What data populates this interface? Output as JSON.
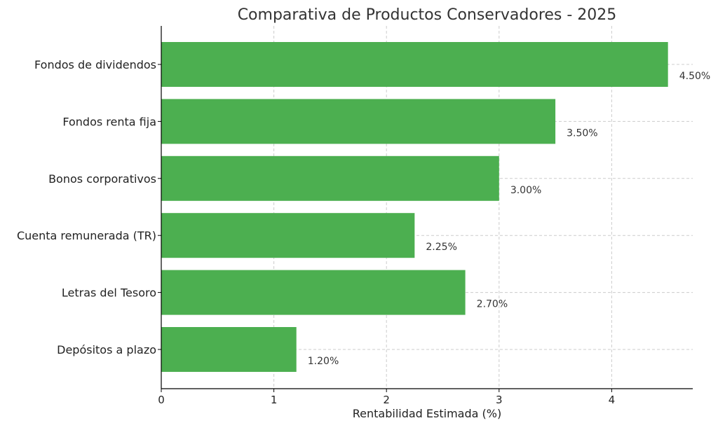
{
  "chart_data": {
    "type": "bar",
    "orientation": "horizontal",
    "title": "Comparativa de Productos Conservadores - 2025",
    "xlabel": "Rentabilidad Estimada (%)",
    "ylabel": "",
    "categories": [
      "Fondos de dividendos",
      "Fondos renta fija",
      "Bonos corporativos",
      "Cuenta remunerada (TR)",
      "Letras del Tesoro",
      "Depósitos a plazo"
    ],
    "values": [
      4.5,
      3.5,
      3.0,
      2.25,
      2.7,
      1.2
    ],
    "data_labels": [
      "4.50%",
      "3.50%",
      "3.00%",
      "2.25%",
      "2.70%",
      "1.20%"
    ],
    "xticks": [
      "0",
      "1",
      "2",
      "3",
      "4"
    ],
    "xlim": [
      0,
      4.72
    ],
    "grid": true,
    "bar_color": "#4caf50"
  }
}
